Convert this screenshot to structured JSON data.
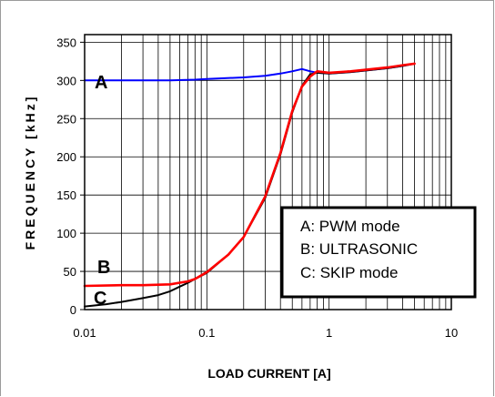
{
  "chart_data": {
    "type": "line",
    "xlabel": "LOAD CURRENT [A]",
    "ylabel": "FREQUENCY [kHz]",
    "x_scale": "log",
    "xlim": [
      0.01,
      10
    ],
    "ylim": [
      0,
      360
    ],
    "x_ticks": [
      "0.01",
      "0.1",
      "1",
      "10"
    ],
    "y_ticks": [
      "0",
      "50",
      "100",
      "150",
      "200",
      "250",
      "300",
      "350"
    ],
    "grid": true,
    "legend": {
      "placement": "bottom-right",
      "entries": [
        "A: PWM mode",
        "B: ULTRASONIC",
        "C: SKIP mode"
      ]
    },
    "curve_labels": [
      "A",
      "B",
      "C"
    ],
    "series": [
      {
        "label": "A",
        "color": "#0000ff",
        "points": [
          [
            0.01,
            300
          ],
          [
            0.02,
            300
          ],
          [
            0.05,
            300
          ],
          [
            0.08,
            301
          ],
          [
            0.1,
            302
          ],
          [
            0.2,
            304
          ],
          [
            0.3,
            306
          ],
          [
            0.4,
            309
          ],
          [
            0.5,
            312
          ],
          [
            0.6,
            315
          ],
          [
            0.7,
            312
          ],
          [
            0.8,
            310
          ],
          [
            1.0,
            309
          ],
          [
            1.5,
            311
          ],
          [
            2.0,
            313
          ],
          [
            3.0,
            316
          ],
          [
            4.0,
            319
          ],
          [
            5.0,
            322
          ]
        ]
      },
      {
        "label": "B",
        "color": "#ff0000",
        "points": [
          [
            0.01,
            31
          ],
          [
            0.02,
            32
          ],
          [
            0.03,
            32
          ],
          [
            0.05,
            33
          ],
          [
            0.07,
            37
          ],
          [
            0.08,
            40
          ],
          [
            0.1,
            49
          ],
          [
            0.15,
            72
          ],
          [
            0.2,
            95
          ],
          [
            0.3,
            148
          ],
          [
            0.4,
            205
          ],
          [
            0.5,
            260
          ],
          [
            0.6,
            292
          ],
          [
            0.7,
            305
          ],
          [
            0.8,
            312
          ],
          [
            1.0,
            310
          ],
          [
            1.5,
            312
          ],
          [
            2.0,
            314
          ],
          [
            3.0,
            317
          ],
          [
            4.0,
            320
          ],
          [
            5.0,
            322
          ]
        ]
      },
      {
        "label": "C",
        "color": "#000000",
        "points": [
          [
            0.01,
            4
          ],
          [
            0.015,
            7
          ],
          [
            0.02,
            10
          ],
          [
            0.03,
            15
          ],
          [
            0.04,
            19
          ],
          [
            0.05,
            24
          ],
          [
            0.06,
            30
          ],
          [
            0.07,
            35
          ],
          [
            0.08,
            40
          ],
          [
            0.1,
            48
          ],
          [
            0.15,
            72
          ],
          [
            0.2,
            95
          ],
          [
            0.3,
            146
          ],
          [
            0.4,
            203
          ],
          [
            0.5,
            258
          ],
          [
            0.6,
            293
          ],
          [
            0.7,
            308
          ],
          [
            0.8,
            310
          ],
          [
            1.0,
            309
          ],
          [
            1.5,
            311
          ],
          [
            2.0,
            313
          ],
          [
            3.0,
            316
          ],
          [
            4.0,
            319
          ],
          [
            5.0,
            322
          ]
        ]
      }
    ]
  }
}
